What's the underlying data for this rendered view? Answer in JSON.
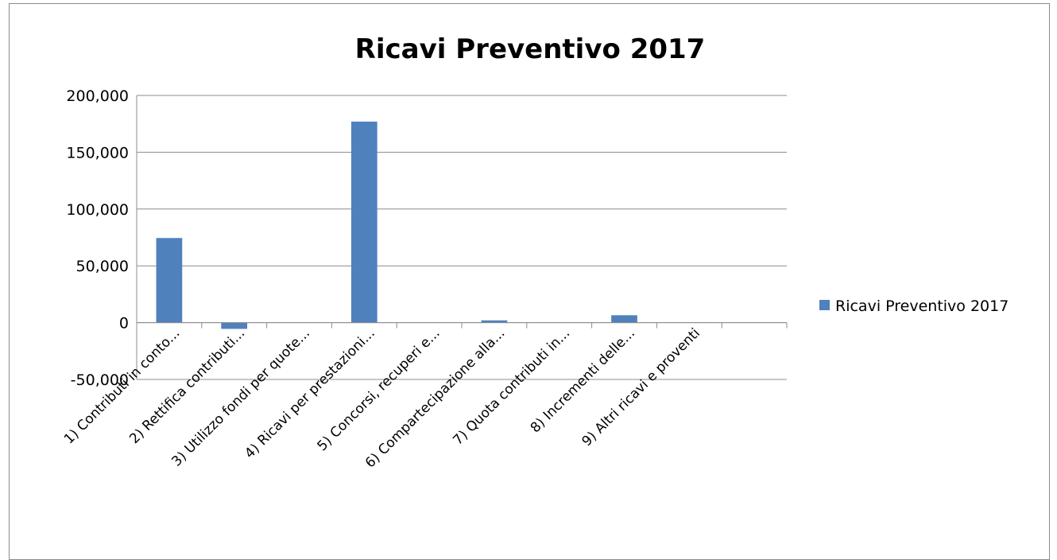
{
  "chart_data": {
    "type": "bar",
    "title": "Ricavi Preventivo 2017",
    "xlabel": "",
    "ylabel": "",
    "ylim": [
      -50000,
      200000
    ],
    "yticks": [
      200000,
      150000,
      100000,
      50000,
      0,
      -50000
    ],
    "ytick_labels": [
      "200,000",
      "150,000",
      "100,000",
      "50,000",
      "0",
      "-50,000"
    ],
    "grid": true,
    "legend_position": "right",
    "categories": [
      "1)      Contributi in conto...",
      "2)      Rettifica contributi...",
      "3)      Utilizzo fondi per quote...",
      "4)      Ricavi per prestazioni...",
      "5)      Concorsi, recuperi e...",
      "6)      Compartecipazione alla...",
      "7)      Quota contributi in...",
      "8)      Incrementi delle...",
      "9)      Altri ricavi e proventi",
      ""
    ],
    "series": [
      {
        "name": "Ricavi Preventivo 2017",
        "color": "#4f81bd",
        "values": [
          74500,
          -5500,
          0,
          177000,
          0,
          2000,
          0,
          6500,
          0,
          0
        ]
      }
    ]
  }
}
